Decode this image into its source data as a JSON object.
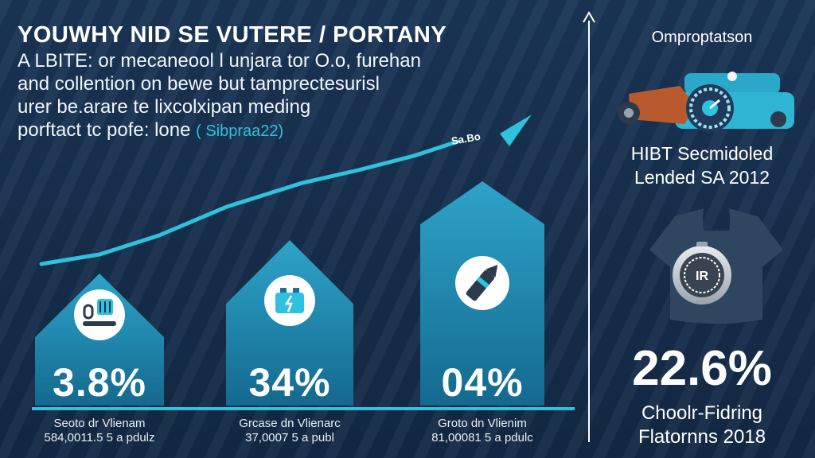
{
  "headline": "YOUWHY NID SE VUTERE / PORTANY",
  "intro": {
    "line1": "A LBITE: or mecaneool l unjara tor O.o, furehan",
    "line2": "and collention on bewe but tamprectesurisl",
    "line3": "urer be.arare te lixcolxipan meding",
    "line4_main": "porftact tc pofe: lone",
    "line4_accent": "( Sibpraa22)"
  },
  "trend_label": "Sa.Bo",
  "colors": {
    "background": "#17304f",
    "accent": "#2fc1dd",
    "bar_fill": "#1e88ac"
  },
  "cards": [
    {
      "percent": "3.8%",
      "caption_line1": "Seoto dr Vlienam",
      "caption_line2": "584,0011.5 5 a pdulz",
      "icon": "wrench-tool-icon"
    },
    {
      "percent": "34%",
      "caption_line1": "Grcase dn Vlienarc",
      "caption_line2": "37,0007 5 a publ",
      "icon": "battery-icon"
    },
    {
      "percent": "04%",
      "caption_line1": "Groto dn Vlienim",
      "caption_line2": "81,00081 5 a pdulc",
      "icon": "pen-icon"
    }
  ],
  "side": {
    "title": "Omproptatson",
    "subtitle_line1": "HIBT Secmidoled",
    "subtitle_line2": "Lended SA 2012",
    "badge_text": "IR",
    "big_percent": "22.6%",
    "footer_line1": "Choolr-Fidring",
    "footer_line2": "Flatornns 2018"
  }
}
